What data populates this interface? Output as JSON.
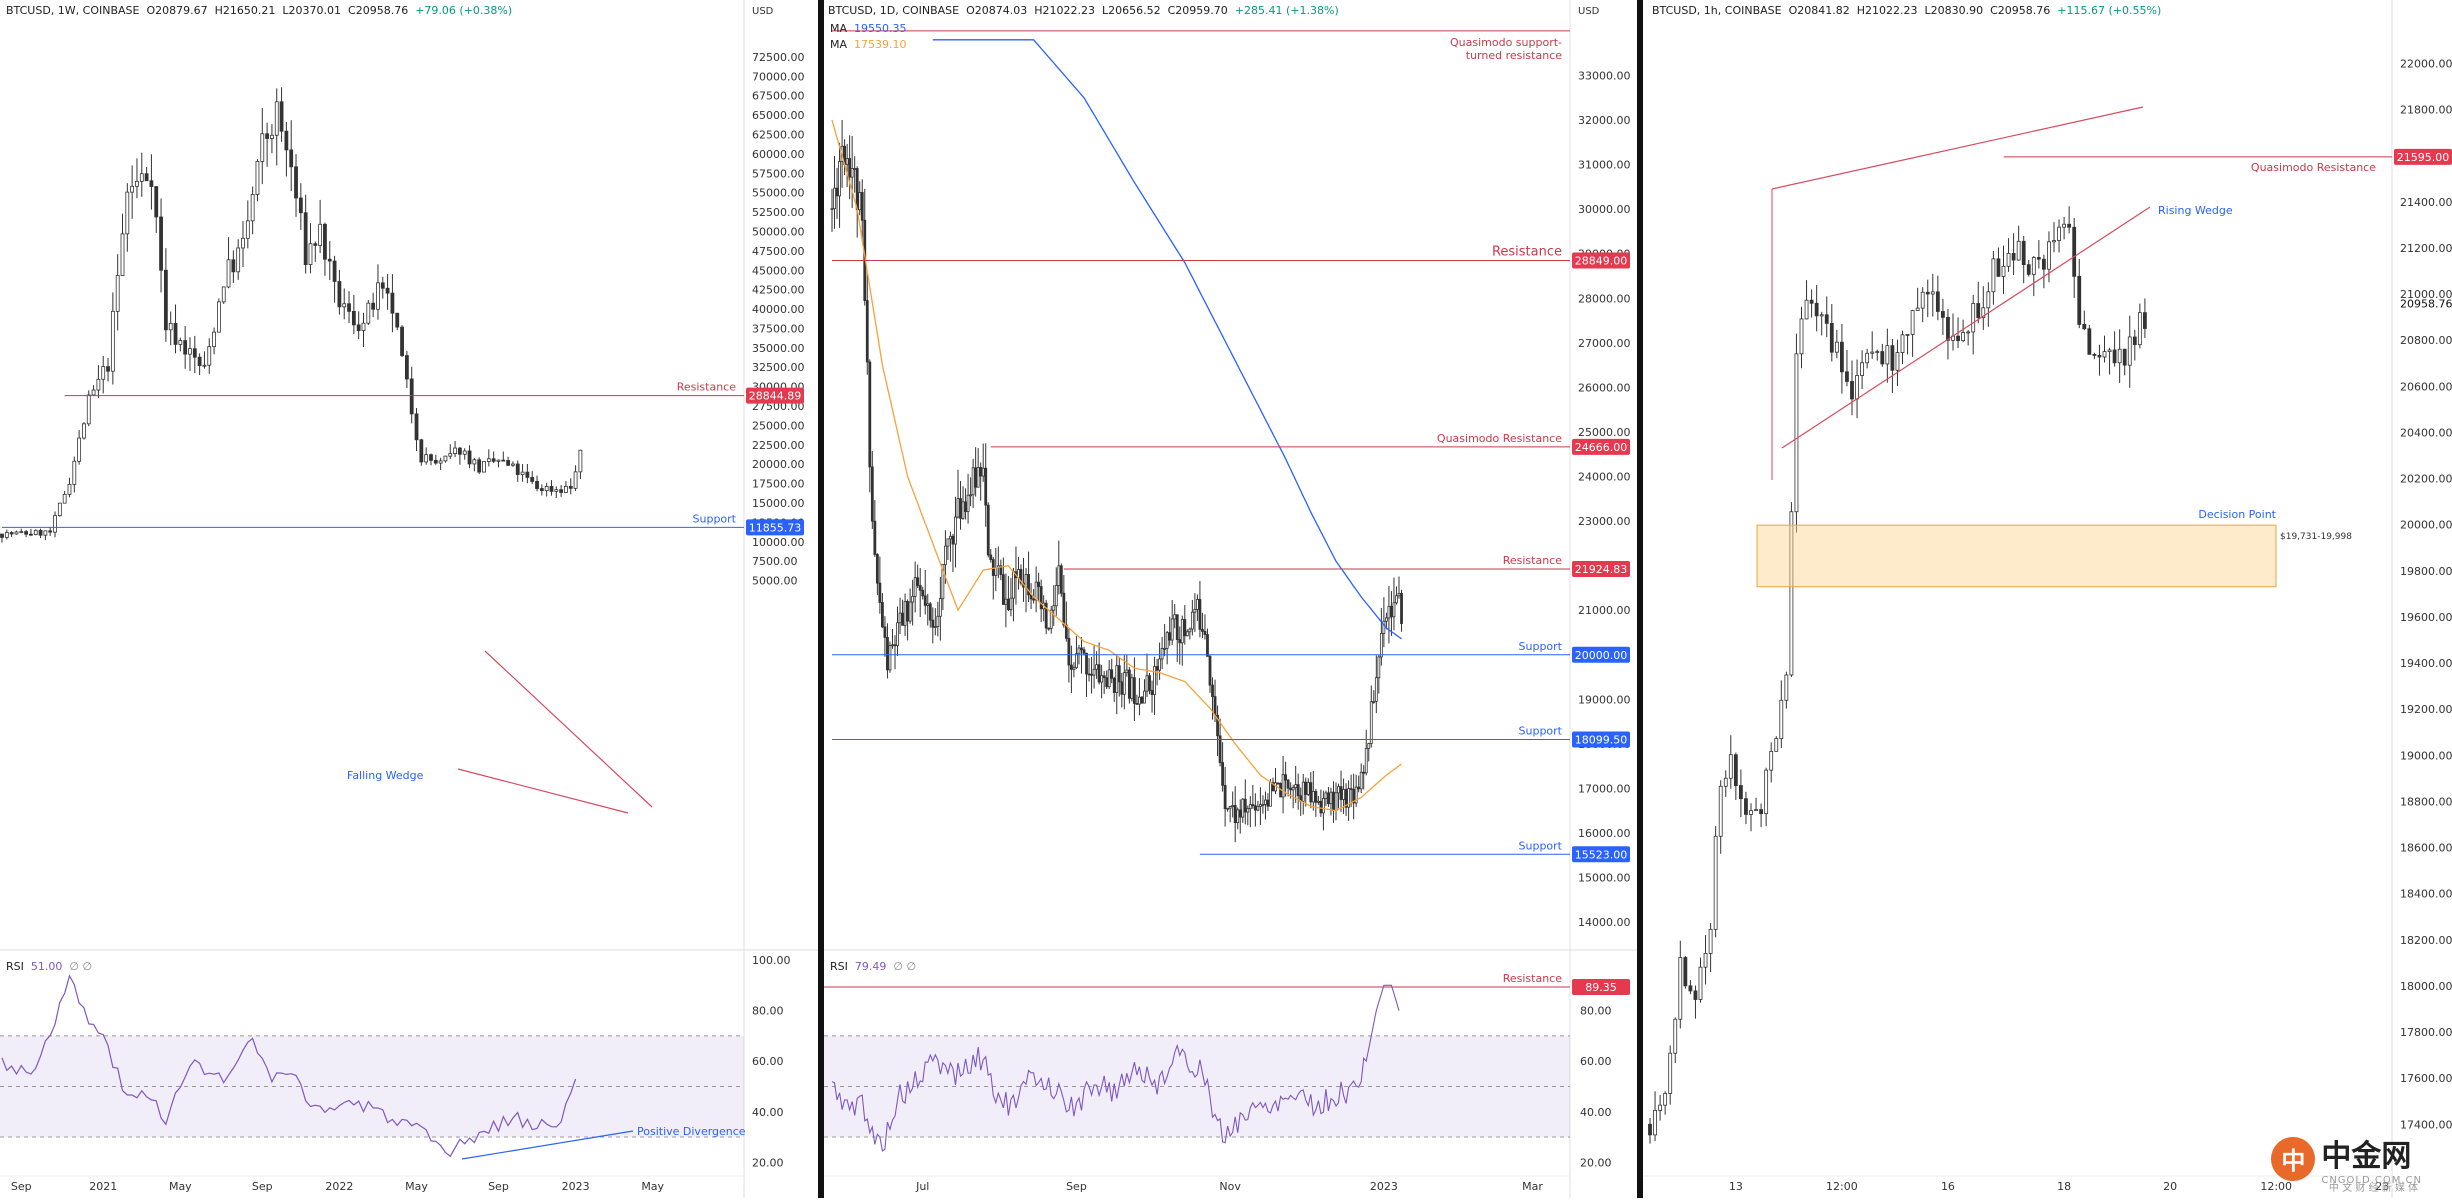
{
  "charts": [
    {
      "id": "weekly",
      "header": {
        "symbol": "BTCUSD, 1W, COINBASE",
        "o": "O20879.67",
        "h": "H21650.21",
        "l": "L20370.01",
        "c": "C20958.76",
        "chg": "+79.06 (+0.38%)"
      },
      "currency_label": "USD",
      "axis": {
        "ymin": 2500,
        "ymax": 77000,
        "ticks": [
          "72500.00",
          "70000.00",
          "67500.00",
          "65000.00",
          "62500.00",
          "60000.00",
          "57500.00",
          "55000.00",
          "52500.00",
          "50000.00",
          "47500.00",
          "45000.00",
          "42500.00",
          "40000.00",
          "37500.00",
          "35000.00",
          "32500.00",
          "30000.00",
          "27500.00",
          "25000.00",
          "22500.00",
          "20000.00",
          "17500.00",
          "15000.00",
          "12500.00",
          "10000.00",
          "7500.00",
          "5000.00"
        ]
      },
      "x_labels": [
        {
          "t": "Sep",
          "i": 4
        },
        {
          "t": "2021",
          "i": 21
        },
        {
          "t": "May",
          "i": 37
        },
        {
          "t": "Sep",
          "i": 54
        },
        {
          "t": "2022",
          "i": 70
        },
        {
          "t": "May",
          "i": 86
        },
        {
          "t": "Sep",
          "i": 103
        },
        {
          "t": "2023",
          "i": 119
        },
        {
          "t": "May",
          "i": 135
        }
      ],
      "levels": [
        {
          "label": "Resistance",
          "price": 28844.89,
          "badge": "28844.89",
          "color": "#c93a4a",
          "start": 13
        },
        {
          "label": "Support",
          "price": 11855.73,
          "badge": "11855.73",
          "color": "#2962ff",
          "start": 0
        }
      ],
      "annotations": [
        {
          "text": "Falling Wedge",
          "color": "#2962ff"
        }
      ],
      "rsi": {
        "label": "RSI",
        "value": "51.00",
        "extra": "∅ ∅",
        "ticks": [
          "100.00",
          "80.00",
          "60.00",
          "40.00",
          "20.00"
        ],
        "annotation": "Positive Divergence"
      }
    },
    {
      "id": "daily",
      "header": {
        "symbol": "BTCUSD, 1D, COINBASE",
        "o": "O20874.03",
        "h": "H21022.23",
        "l": "L20656.52",
        "c": "C20959.70",
        "chg": "+285.41 (+1.38%)"
      },
      "ma": [
        {
          "label": "MA",
          "value": "19550.35",
          "color": "#2962ff"
        },
        {
          "label": "MA",
          "value": "17539.10",
          "color": "#f7a23b"
        }
      ],
      "currency_label": "USD",
      "axis": {
        "ymin": 13600,
        "ymax": 34200,
        "ticks": [
          "33000.00",
          "32000.00",
          "31000.00",
          "30000.00",
          "29000.00",
          "28000.00",
          "27000.00",
          "26000.00",
          "25000.00",
          "24000.00",
          "23000.00",
          "22000.00",
          "21000.00",
          "20000.00",
          "19000.00",
          "18000.00",
          "17000.00",
          "16000.00",
          "15000.00",
          "14000.00"
        ]
      },
      "x_labels": [
        {
          "t": "Jul",
          "i": 36
        },
        {
          "t": "Sep",
          "i": 97
        },
        {
          "t": "Nov",
          "i": 158
        },
        {
          "t": "2023",
          "i": 219
        },
        {
          "t": "Mar",
          "i": 278
        }
      ],
      "levels": [
        {
          "label": "Quasimodo support-turned resistance",
          "line1": "Quasimodo support-",
          "line2": "turned resistance",
          "price": 34000,
          "badge": "",
          "color": "#c93a4a",
          "start": 0
        },
        {
          "label": "Resistance",
          "price": 28849.0,
          "badge": "28849.00",
          "color": "#c93a4a",
          "start": 0
        },
        {
          "label": "Quasimodo Resistance",
          "price": 24666.0,
          "badge": "24666.00",
          "color": "#c93a4a",
          "start": 63
        },
        {
          "label": "Resistance",
          "price": 21924.83,
          "badge": "21924.83",
          "color": "#c93a4a",
          "start": 92
        },
        {
          "label": "Support",
          "price": 20000.0,
          "badge": "20000.00",
          "color": "#2962ff",
          "start": 0
        },
        {
          "label": "Support",
          "price": 18099.5,
          "badge": "18099.50",
          "color": "#2962ff",
          "start": 0
        },
        {
          "label": "Support",
          "price": 15523.0,
          "badge": "15523.00",
          "color": "#2962ff",
          "start": 146
        }
      ],
      "rsi": {
        "label": "RSI",
        "value": "79.49",
        "extra": "∅ ∅",
        "ticks": [
          "80.00",
          "60.00",
          "40.00",
          "20.00"
        ],
        "resistance_label": "Resistance",
        "resistance_badge": "89.35"
      }
    },
    {
      "id": "hourly",
      "header": {
        "symbol": "BTCUSD, 1h, COINBASE",
        "o": "O20841.82",
        "h": "H21022.23",
        "l": "L20830.90",
        "c": "C20958.76",
        "chg": "+115.67 (+0.55%)"
      },
      "currency_label": "",
      "axis": {
        "ymin": 17180,
        "ymax": 22180,
        "ticks": [
          "22000.00",
          "21800.00",
          "21600.00",
          "21400.00",
          "21200.00",
          "21000.00",
          "20800.00",
          "20600.00",
          "20400.00",
          "20200.00",
          "20000.00",
          "19800.00",
          "19600.00",
          "19400.00",
          "19200.00",
          "19000.00",
          "18800.00",
          "18600.00",
          "18400.00",
          "18200.00",
          "18000.00",
          "17800.00",
          "17600.00",
          "17400.00"
        ]
      },
      "x_labels": [
        {
          "t": "13",
          "i": 17
        },
        {
          "t": "12:00",
          "i": 38
        },
        {
          "t": "16",
          "i": 59
        },
        {
          "t": "18",
          "i": 82
        },
        {
          "t": "20",
          "i": 103
        },
        {
          "t": "12:00",
          "i": 124
        },
        {
          "t": "23",
          "i": 145
        }
      ],
      "levels": [
        {
          "label": "Quasimodo Resistance",
          "price": 21595.0,
          "badge": "21595.00",
          "color": "#c93a4a",
          "start": 74
        }
      ],
      "last_price": "20958.76",
      "annotations": [
        {
          "text": "Rising Wedge",
          "color": "#2962ff"
        }
      ],
      "zone": {
        "label": "Decision Point",
        "range": "$19,731-19,998",
        "low": 19731,
        "high": 19998
      }
    }
  ],
  "watermark": {
    "mark": "中",
    "name": "中金网",
    "site": "CNGOLD.COM.CN",
    "sub": "中 文 财 经 新 媒 体"
  }
}
